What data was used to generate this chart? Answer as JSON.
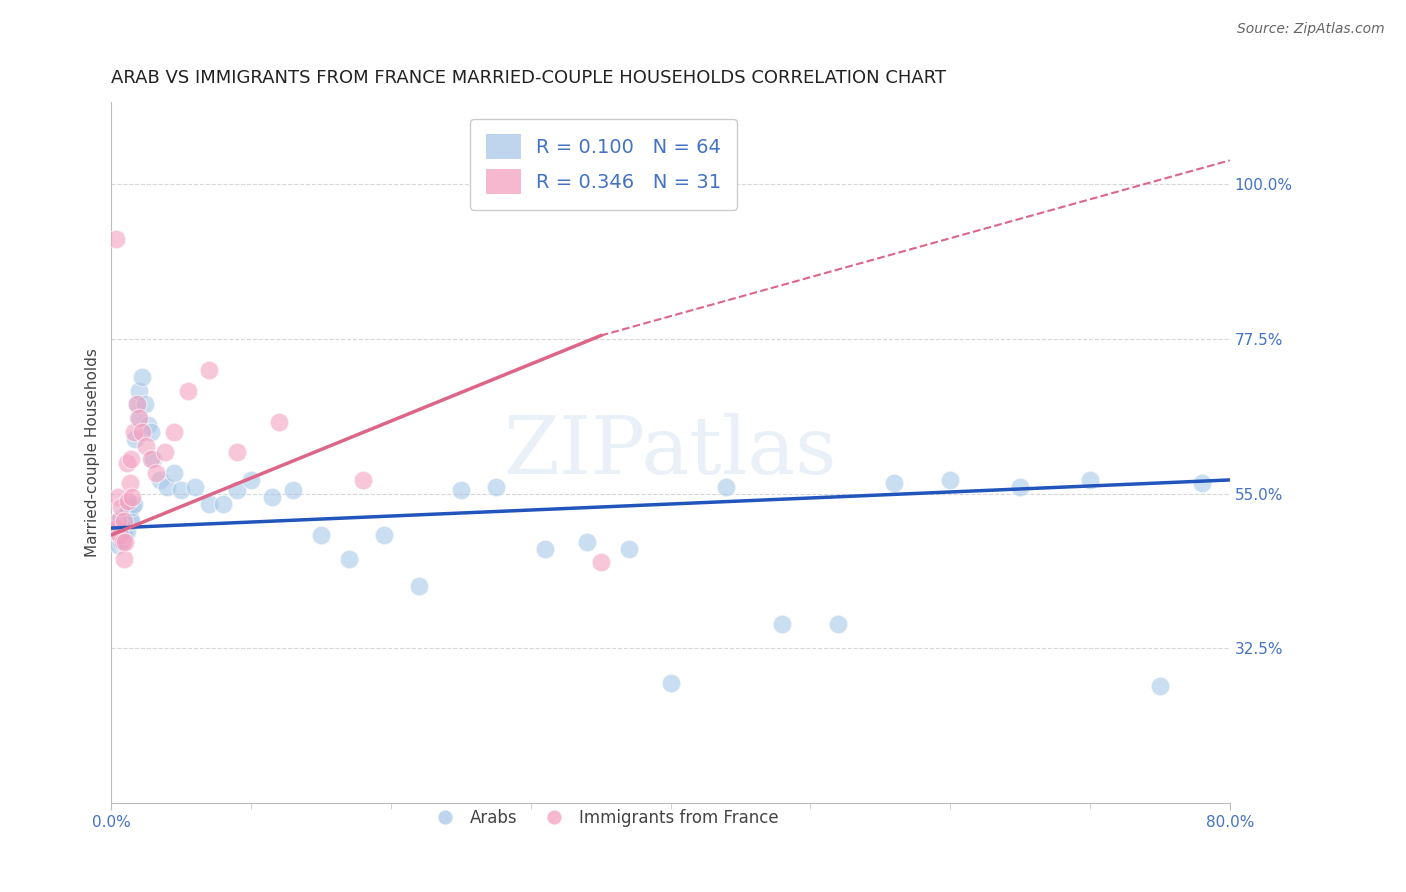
{
  "title": "ARAB VS IMMIGRANTS FROM FRANCE MARRIED-COUPLE HOUSEHOLDS CORRELATION CHART",
  "source": "Source: ZipAtlas.com",
  "ylabel": "Married-couple Households",
  "watermark": "ZIPatlas",
  "xlim": [
    0.0,
    0.8
  ],
  "ylim": [
    0.1,
    1.12
  ],
  "yticks": [
    0.325,
    0.55,
    0.775,
    1.0
  ],
  "yticklabels": [
    "32.5%",
    "55.0%",
    "77.5%",
    "100.0%"
  ],
  "blue_R": 0.1,
  "blue_N": 64,
  "pink_R": 0.346,
  "pink_N": 31,
  "blue_color": "#a8c8e8",
  "pink_color": "#f4a0c0",
  "line_blue": "#2255bb",
  "line_pink": "#dd6688",
  "legend_label_blue": "Arabs",
  "legend_label_pink": "Immigrants from France",
  "blue_points_x": [
    0.001,
    0.002,
    0.003,
    0.003,
    0.004,
    0.004,
    0.005,
    0.005,
    0.006,
    0.006,
    0.007,
    0.007,
    0.008,
    0.008,
    0.009,
    0.009,
    0.01,
    0.01,
    0.011,
    0.011,
    0.012,
    0.013,
    0.014,
    0.015,
    0.016,
    0.017,
    0.018,
    0.019,
    0.02,
    0.022,
    0.024,
    0.026,
    0.028,
    0.03,
    0.035,
    0.04,
    0.045,
    0.05,
    0.06,
    0.07,
    0.08,
    0.09,
    0.1,
    0.115,
    0.13,
    0.15,
    0.17,
    0.195,
    0.22,
    0.25,
    0.275,
    0.31,
    0.34,
    0.37,
    0.4,
    0.44,
    0.48,
    0.52,
    0.56,
    0.6,
    0.65,
    0.7,
    0.75,
    0.78
  ],
  "blue_points_y": [
    0.495,
    0.49,
    0.5,
    0.485,
    0.505,
    0.48,
    0.5,
    0.475,
    0.51,
    0.49,
    0.515,
    0.48,
    0.505,
    0.495,
    0.51,
    0.49,
    0.515,
    0.5,
    0.52,
    0.495,
    0.525,
    0.515,
    0.51,
    0.53,
    0.535,
    0.63,
    0.68,
    0.66,
    0.7,
    0.72,
    0.68,
    0.65,
    0.64,
    0.6,
    0.57,
    0.56,
    0.58,
    0.555,
    0.56,
    0.535,
    0.535,
    0.555,
    0.57,
    0.545,
    0.555,
    0.49,
    0.455,
    0.49,
    0.415,
    0.555,
    0.56,
    0.47,
    0.48,
    0.47,
    0.275,
    0.56,
    0.36,
    0.36,
    0.565,
    0.57,
    0.56,
    0.57,
    0.27,
    0.565
  ],
  "pink_points_x": [
    0.002,
    0.003,
    0.004,
    0.005,
    0.005,
    0.006,
    0.007,
    0.008,
    0.009,
    0.009,
    0.01,
    0.011,
    0.012,
    0.013,
    0.014,
    0.015,
    0.016,
    0.018,
    0.02,
    0.022,
    0.025,
    0.028,
    0.032,
    0.038,
    0.045,
    0.055,
    0.07,
    0.09,
    0.12,
    0.18,
    0.35
  ],
  "pink_points_y": [
    0.495,
    0.92,
    0.5,
    0.51,
    0.545,
    0.49,
    0.53,
    0.48,
    0.51,
    0.455,
    0.48,
    0.595,
    0.54,
    0.565,
    0.6,
    0.545,
    0.64,
    0.68,
    0.66,
    0.64,
    0.62,
    0.6,
    0.58,
    0.61,
    0.64,
    0.7,
    0.73,
    0.61,
    0.655,
    0.57,
    0.45
  ],
  "blue_line_x0": 0.0,
  "blue_line_x1": 0.8,
  "blue_line_y0": 0.5,
  "blue_line_y1": 0.57,
  "pink_line_solid_x0": 0.0,
  "pink_line_solid_x1": 0.35,
  "pink_line_solid_y0": 0.49,
  "pink_line_solid_y1": 0.78,
  "pink_line_dash_x0": 0.35,
  "pink_line_dash_x1": 0.8,
  "pink_line_dash_y0": 0.78,
  "pink_line_dash_y1": 1.035,
  "grid_color": "#cccccc",
  "title_fontsize": 13,
  "axis_label_fontsize": 11,
  "tick_fontsize": 11,
  "tick_color": "#4472c4",
  "source_fontsize": 10
}
